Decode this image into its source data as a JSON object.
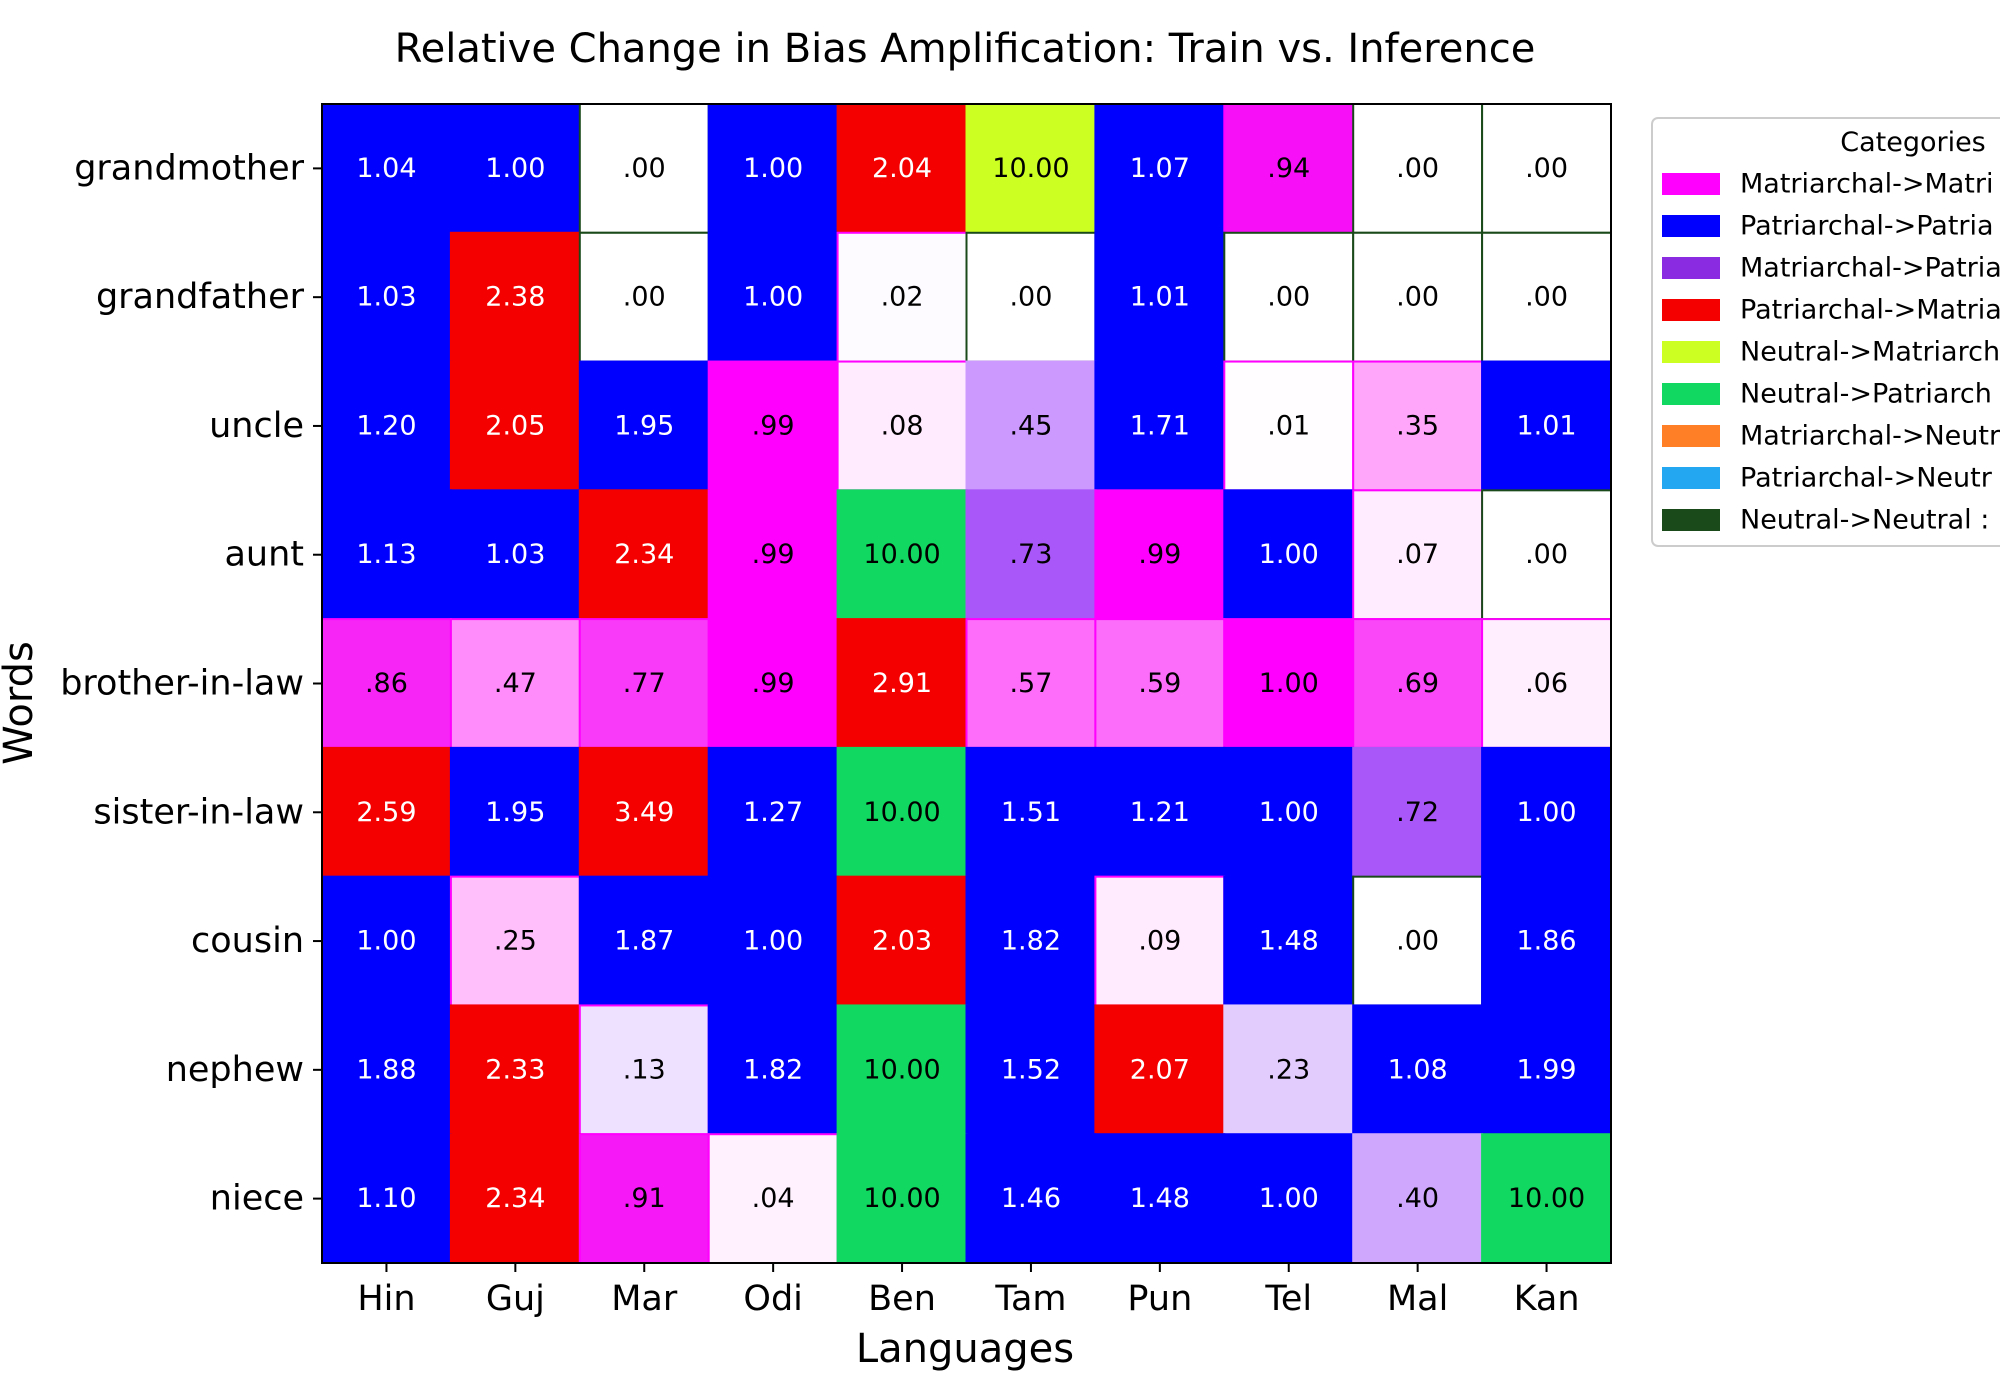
{
  "chart_data": {
    "type": "heatmap",
    "title": "Relative Change in Bias Amplification: Train vs. Inference",
    "xlabel": "Languages",
    "ylabel": "Words",
    "grid": false,
    "legend_placement": "right, outside plot, top",
    "x_categories": [
      "Hin",
      "Guj",
      "Mar",
      "Odi",
      "Ben",
      "Tam",
      "Pun",
      "Tel",
      "Mal",
      "Kan"
    ],
    "y_categories": [
      "grandmother",
      "grandfather",
      "uncle",
      "aunt",
      "brother-in-law",
      "sister-in-law",
      "cousin",
      "nephew",
      "niece"
    ],
    "legend": {
      "title": "Categories",
      "entries": [
        {
          "label": "Matriarchal->Matri",
          "color": "#ff00ff"
        },
        {
          "label": "Patriarchal->Patria",
          "color": "#0000ff"
        },
        {
          "label": "Matriarchal->Patria",
          "color": "#8a2be2"
        },
        {
          "label": "Patriarchal->Matria",
          "color": "#f50000"
        },
        {
          "label": "Neutral->Matriarch",
          "color": "#ccff22"
        },
        {
          "label": "Neutral->Patriarch",
          "color": "#11d860"
        },
        {
          "label": "Matriarchal->Neutr",
          "color": "#ff7f27"
        },
        {
          "label": "Patriarchal->Neutr",
          "color": "#22a7f0"
        },
        {
          "label": "Neutral->Neutral :",
          "color": "#1a4a1a"
        }
      ]
    },
    "cells": [
      [
        {
          "label": "1.04",
          "value": 1.04,
          "color": "#0000ff"
        },
        {
          "label": "1.00",
          "value": 1.0,
          "color": "#0000ff"
        },
        {
          "label": ".00",
          "value": 0.0,
          "color": "#ffffff"
        },
        {
          "label": "1.00",
          "value": 1.0,
          "color": "#0000ff"
        },
        {
          "label": "2.04",
          "value": 2.04,
          "color": "#f50000"
        },
        {
          "label": "10.00",
          "value": 10.0,
          "color": "#ccff22"
        },
        {
          "label": "1.07",
          "value": 1.07,
          "color": "#0000ff"
        },
        {
          "label": ".94",
          "value": 0.94,
          "color": "#f70ff7"
        },
        {
          "label": ".00",
          "value": 0.0,
          "color": "#ffffff"
        },
        {
          "label": ".00",
          "value": 0.0,
          "color": "#ffffff"
        }
      ],
      [
        {
          "label": "1.03",
          "value": 1.03,
          "color": "#0000ff"
        },
        {
          "label": "2.38",
          "value": 2.38,
          "color": "#f50000"
        },
        {
          "label": ".00",
          "value": 0.0,
          "color": "#ffffff"
        },
        {
          "label": "1.00",
          "value": 1.0,
          "color": "#0000ff"
        },
        {
          "label": ".02",
          "value": 0.02,
          "color": "#fdfbff"
        },
        {
          "label": ".00",
          "value": 0.0,
          "color": "#ffffff"
        },
        {
          "label": "1.01",
          "value": 1.01,
          "color": "#0000ff"
        },
        {
          "label": ".00",
          "value": 0.0,
          "color": "#ffffff"
        },
        {
          "label": ".00",
          "value": 0.0,
          "color": "#ffffff"
        },
        {
          "label": ".00",
          "value": 0.0,
          "color": "#ffffff"
        }
      ],
      [
        {
          "label": "1.20",
          "value": 1.2,
          "color": "#0000ff"
        },
        {
          "label": "2.05",
          "value": 2.05,
          "color": "#f50000"
        },
        {
          "label": "1.95",
          "value": 1.95,
          "color": "#0000ff"
        },
        {
          "label": ".99",
          "value": 0.99,
          "color": "#ff00ff"
        },
        {
          "label": ".08",
          "value": 0.08,
          "color": "#ffeafe"
        },
        {
          "label": ".45",
          "value": 0.45,
          "color": "#cc99ff"
        },
        {
          "label": "1.71",
          "value": 1.71,
          "color": "#0000ff"
        },
        {
          "label": ".01",
          "value": 0.01,
          "color": "#fffdff"
        },
        {
          "label": ".35",
          "value": 0.35,
          "color": "#ffa6fb"
        },
        {
          "label": "1.01",
          "value": 1.01,
          "color": "#0000ff"
        }
      ],
      [
        {
          "label": "1.13",
          "value": 1.13,
          "color": "#0000ff"
        },
        {
          "label": "1.03",
          "value": 1.03,
          "color": "#0000ff"
        },
        {
          "label": "2.34",
          "value": 2.34,
          "color": "#f50000"
        },
        {
          "label": ".99",
          "value": 0.99,
          "color": "#ff00ff"
        },
        {
          "label": "10.00",
          "value": 10.0,
          "color": "#11d860"
        },
        {
          "label": ".73",
          "value": 0.73,
          "color": "#a957f8"
        },
        {
          "label": ".99",
          "value": 0.99,
          "color": "#ff00ff"
        },
        {
          "label": "1.00",
          "value": 1.0,
          "color": "#0000ff"
        },
        {
          "label": ".07",
          "value": 0.07,
          "color": "#ffecfe"
        },
        {
          "label": ".00",
          "value": 0.0,
          "color": "#ffffff"
        }
      ],
      [
        {
          "label": ".86",
          "value": 0.86,
          "color": "#f825f7"
        },
        {
          "label": ".47",
          "value": 0.47,
          "color": "#ff8cfa"
        },
        {
          "label": ".77",
          "value": 0.77,
          "color": "#f93af8"
        },
        {
          "label": ".99",
          "value": 0.99,
          "color": "#ff00ff"
        },
        {
          "label": "2.91",
          "value": 2.91,
          "color": "#f50000"
        },
        {
          "label": ".57",
          "value": 0.57,
          "color": "#fd6dfa"
        },
        {
          "label": ".59",
          "value": 0.59,
          "color": "#fc6df9"
        },
        {
          "label": "1.00",
          "value": 1.0,
          "color": "#ff00ff"
        },
        {
          "label": ".69",
          "value": 0.69,
          "color": "#fa47f8"
        },
        {
          "label": ".06",
          "value": 0.06,
          "color": "#ffeefd"
        }
      ],
      [
        {
          "label": "2.59",
          "value": 2.59,
          "color": "#f50000"
        },
        {
          "label": "1.95",
          "value": 1.95,
          "color": "#0000ff"
        },
        {
          "label": "3.49",
          "value": 3.49,
          "color": "#f50000"
        },
        {
          "label": "1.27",
          "value": 1.27,
          "color": "#0000ff"
        },
        {
          "label": "10.00",
          "value": 10.0,
          "color": "#11d860"
        },
        {
          "label": "1.51",
          "value": 1.51,
          "color": "#0000ff"
        },
        {
          "label": "1.21",
          "value": 1.21,
          "color": "#0000ff"
        },
        {
          "label": "1.00",
          "value": 1.0,
          "color": "#0000ff"
        },
        {
          "label": ".72",
          "value": 0.72,
          "color": "#a957f8"
        },
        {
          "label": "1.00",
          "value": 1.0,
          "color": "#0000ff"
        }
      ],
      [
        {
          "label": "1.00",
          "value": 1.0,
          "color": "#0000ff"
        },
        {
          "label": ".25",
          "value": 0.25,
          "color": "#ffbffb"
        },
        {
          "label": "1.87",
          "value": 1.87,
          "color": "#0000ff"
        },
        {
          "label": "1.00",
          "value": 1.0,
          "color": "#0000ff"
        },
        {
          "label": "2.03",
          "value": 2.03,
          "color": "#f50000"
        },
        {
          "label": "1.82",
          "value": 1.82,
          "color": "#0000ff"
        },
        {
          "label": ".09",
          "value": 0.09,
          "color": "#ffeafe"
        },
        {
          "label": "1.48",
          "value": 1.48,
          "color": "#0000ff"
        },
        {
          "label": ".00",
          "value": 0.0,
          "color": "#ffffff"
        },
        {
          "label": "1.86",
          "value": 1.86,
          "color": "#0000ff"
        }
      ],
      [
        {
          "label": "1.88",
          "value": 1.88,
          "color": "#0000ff"
        },
        {
          "label": "2.33",
          "value": 2.33,
          "color": "#f50000"
        },
        {
          "label": ".13",
          "value": 0.13,
          "color": "#eee0ff"
        },
        {
          "label": "1.82",
          "value": 1.82,
          "color": "#0000ff"
        },
        {
          "label": "10.00",
          "value": 10.0,
          "color": "#11d860"
        },
        {
          "label": "1.52",
          "value": 1.52,
          "color": "#0000ff"
        },
        {
          "label": "2.07",
          "value": 2.07,
          "color": "#f50000"
        },
        {
          "label": ".23",
          "value": 0.23,
          "color": "#e1ccfd"
        },
        {
          "label": "1.08",
          "value": 1.08,
          "color": "#0000ff"
        },
        {
          "label": "1.99",
          "value": 1.99,
          "color": "#0000ff"
        }
      ],
      [
        {
          "label": "1.10",
          "value": 1.1,
          "color": "#0000ff"
        },
        {
          "label": "2.34",
          "value": 2.34,
          "color": "#f50000"
        },
        {
          "label": ".91",
          "value": 0.91,
          "color": "#f718f7"
        },
        {
          "label": ".04",
          "value": 0.04,
          "color": "#fff2fe"
        },
        {
          "label": "10.00",
          "value": 10.0,
          "color": "#11d860"
        },
        {
          "label": "1.46",
          "value": 1.46,
          "color": "#0000ff"
        },
        {
          "label": "1.48",
          "value": 1.48,
          "color": "#0000ff"
        },
        {
          "label": "1.00",
          "value": 1.0,
          "color": "#0000ff"
        },
        {
          "label": ".40",
          "value": 0.4,
          "color": "#cfa8fd"
        },
        {
          "label": "10.00",
          "value": 10.0,
          "color": "#11d860"
        }
      ]
    ]
  }
}
